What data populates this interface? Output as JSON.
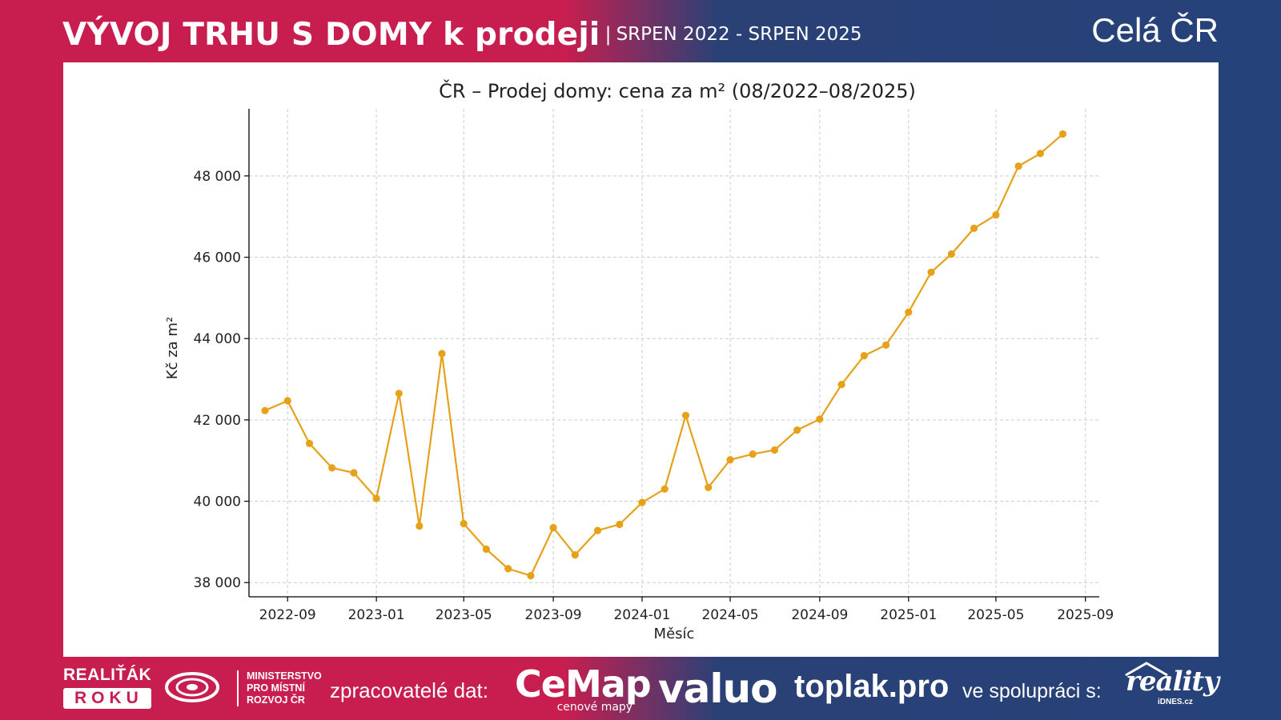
{
  "header": {
    "title": "VÝVOJ TRHU S DOMY k prodeji",
    "separator": "|",
    "period": "SRPEN 2022 - SRPEN 2025",
    "region": "Celá ČR"
  },
  "footer": {
    "realitak_line1": "REALIŤÁK",
    "realitak_line2": "ROKU",
    "mmr_line1": "MINISTERSTVO",
    "mmr_line2": "PRO MÍSTNÍ",
    "mmr_line3": "ROZVOJ ČR",
    "processors_label": "zpracovatelé dat:",
    "cemap_name": "CeMap",
    "cemap_sub": "cenové mapy",
    "valuo_name": "valuo",
    "toplak_name": "toplak.pro",
    "cooperation_label": "ve spolupráci s:",
    "reality_name": "reality",
    "reality_sub": "iDNES.cz"
  },
  "colors": {
    "brand_red": "#c81e4f",
    "brand_blue": "#26427a",
    "series": "#e6a118",
    "grid": "#cccccc"
  },
  "chart_data": {
    "type": "line",
    "title": "ČR – Prodej domy: cena za m² (08/2022–08/2025)",
    "xlabel": "Měsíc",
    "ylabel": "Kč za m²",
    "x": [
      "2022-08",
      "2022-09",
      "2022-10",
      "2022-11",
      "2022-12",
      "2023-01",
      "2023-02",
      "2023-03",
      "2023-04",
      "2023-05",
      "2023-06",
      "2023-07",
      "2023-08",
      "2023-09",
      "2023-10",
      "2023-11",
      "2023-12",
      "2024-01",
      "2024-02",
      "2024-03",
      "2024-04",
      "2024-05",
      "2024-06",
      "2024-07",
      "2024-08",
      "2024-09",
      "2024-10",
      "2024-11",
      "2024-12",
      "2025-01",
      "2025-02",
      "2025-03",
      "2025-04",
      "2025-05",
      "2025-06",
      "2025-07",
      "2025-08"
    ],
    "series": [
      {
        "values": [
          42230,
          42470,
          41420,
          40820,
          40700,
          40070,
          42650,
          39390,
          43630,
          39450,
          38820,
          38340,
          38170,
          39350,
          38680,
          39280,
          39430,
          39970,
          40300,
          42110,
          40340,
          41020,
          41160,
          41260,
          41750,
          42020,
          42870,
          43580,
          43840,
          44650,
          45630,
          46080,
          46710,
          47040,
          48240,
          48550,
          49030
        ]
      }
    ],
    "xticks": [
      "2022-09",
      "2023-01",
      "2023-05",
      "2023-09",
      "2024-01",
      "2024-05",
      "2024-09",
      "2025-01",
      "2025-05",
      "2025-09"
    ],
    "yticks": [
      38000,
      40000,
      42000,
      44000,
      46000,
      48000
    ],
    "ytick_labels": [
      "38 000",
      "40 000",
      "42 000",
      "44 000",
      "46 000",
      "48 000"
    ],
    "xlim": [
      "2022-07-10",
      "2025-09-20"
    ],
    "ylim": [
      37650,
      49650
    ],
    "grid": true,
    "legend": "none"
  }
}
